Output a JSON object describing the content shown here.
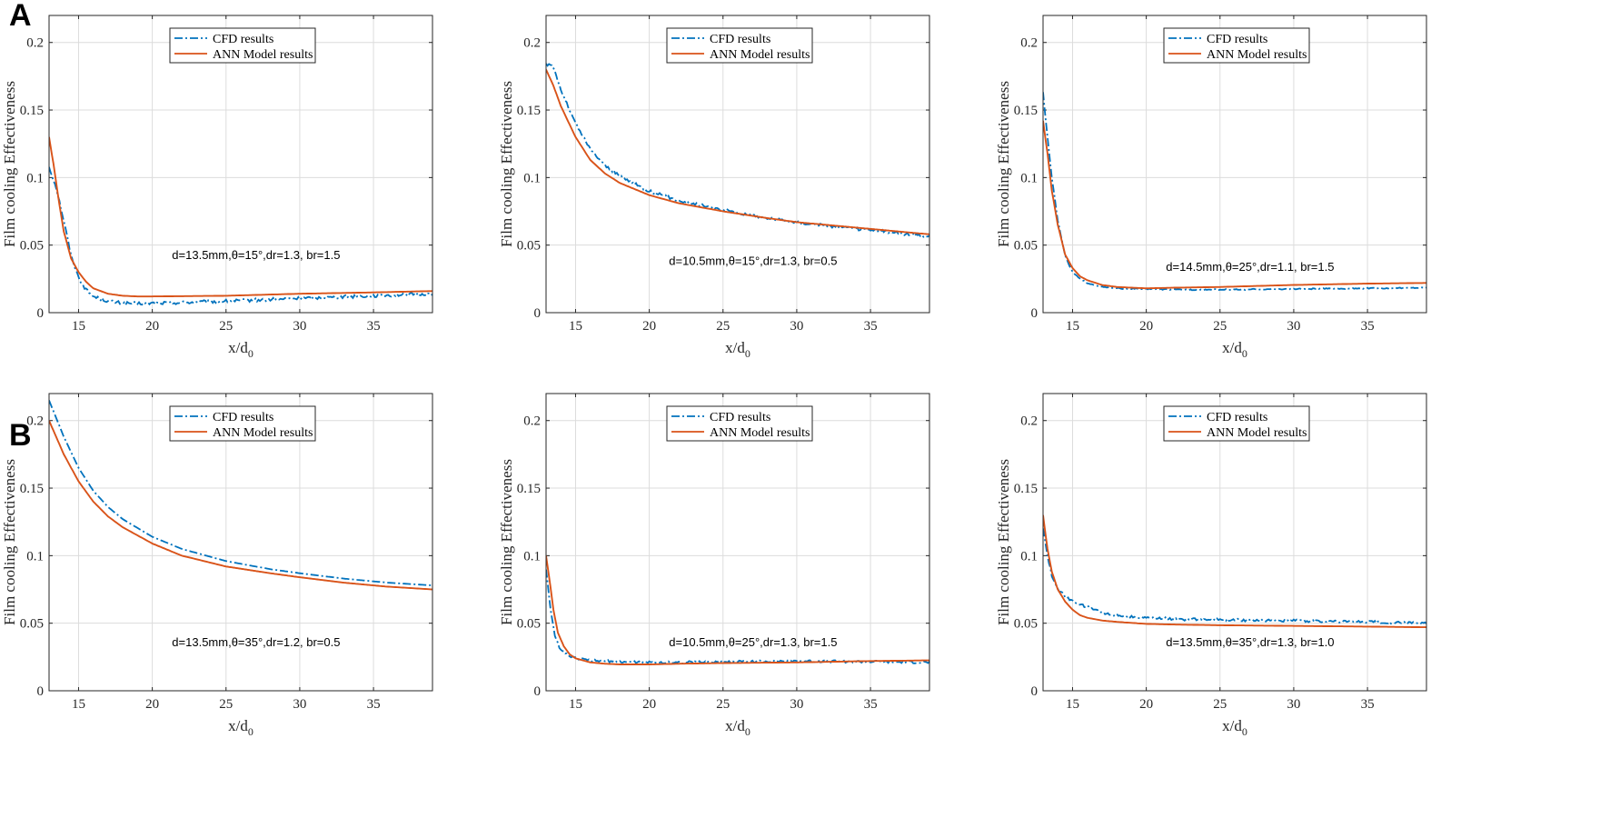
{
  "figure": {
    "row_labels": [
      "A",
      "B"
    ]
  },
  "colors": {
    "cfd": "#0072BD",
    "ann": "#D95319"
  },
  "chart_data": [
    {
      "type": "line",
      "row": "A",
      "xlabel": "x/d",
      "xlabel_sub": "0",
      "ylabel": "Film cooling Effectiveness",
      "xlim": [
        13,
        39
      ],
      "ylim": [
        0,
        0.22
      ],
      "xticks": [
        15,
        20,
        25,
        30,
        35
      ],
      "yticks": [
        0,
        0.05,
        0.1,
        0.15,
        0.2
      ],
      "ytick_labels": [
        "0",
        "0.05",
        "0.1",
        "0.15",
        "0.2"
      ],
      "grid": true,
      "legend_position": "top-center",
      "annotation": "d=13.5mm,θ=15°,dr=1.3, br=1.5",
      "series": [
        {
          "name": "CFD results",
          "style": "dashdot",
          "noise": 0.0012,
          "x": [
            13,
            13.5,
            14,
            14.5,
            15,
            15.5,
            16,
            17,
            18,
            19,
            20,
            22,
            25,
            30,
            35,
            39
          ],
          "y": [
            0.108,
            0.092,
            0.068,
            0.042,
            0.026,
            0.017,
            0.012,
            0.0085,
            0.007,
            0.0068,
            0.007,
            0.0075,
            0.0085,
            0.0105,
            0.0125,
            0.014
          ]
        },
        {
          "name": "ANN Model results",
          "style": "solid",
          "noise": 0,
          "x": [
            13,
            13.3,
            13.7,
            14,
            14.5,
            15,
            15.5,
            16,
            17,
            18,
            19,
            20,
            25,
            30,
            35,
            39
          ],
          "y": [
            0.13,
            0.11,
            0.08,
            0.06,
            0.04,
            0.03,
            0.023,
            0.018,
            0.014,
            0.0125,
            0.012,
            0.012,
            0.0125,
            0.014,
            0.015,
            0.016
          ]
        }
      ]
    },
    {
      "type": "line",
      "row": "A",
      "xlabel": "x/d",
      "xlabel_sub": "0",
      "ylabel": "Film cooling Effectiveness",
      "xlim": [
        13,
        39
      ],
      "ylim": [
        0,
        0.22
      ],
      "xticks": [
        15,
        20,
        25,
        30,
        35
      ],
      "yticks": [
        0,
        0.05,
        0.1,
        0.15,
        0.2
      ],
      "ytick_labels": [
        "0",
        "0.05",
        "0.1",
        "0.15",
        "0.2"
      ],
      "grid": true,
      "legend_position": "top-center",
      "annotation": "d=10.5mm,θ=15°,dr=1.3, br=0.5",
      "series": [
        {
          "name": "CFD results",
          "style": "dashdot",
          "noise": 0.0011,
          "x": [
            13,
            13.5,
            14,
            15,
            16,
            17,
            18,
            20,
            22,
            25,
            28,
            30,
            33,
            36,
            39
          ],
          "y": [
            0.184,
            0.182,
            0.165,
            0.14,
            0.121,
            0.109,
            0.101,
            0.09,
            0.083,
            0.076,
            0.07,
            0.067,
            0.063,
            0.06,
            0.056
          ]
        },
        {
          "name": "ANN Model results",
          "style": "solid",
          "noise": 0,
          "x": [
            13,
            13.5,
            14,
            15,
            16,
            17,
            18,
            20,
            22,
            25,
            28,
            30,
            33,
            36,
            39
          ],
          "y": [
            0.18,
            0.168,
            0.153,
            0.13,
            0.113,
            0.103,
            0.096,
            0.087,
            0.081,
            0.075,
            0.07,
            0.067,
            0.064,
            0.061,
            0.058
          ]
        }
      ]
    },
    {
      "type": "line",
      "row": "A",
      "xlabel": "x/d",
      "xlabel_sub": "0",
      "ylabel": "Film cooling Effectiveness",
      "xlim": [
        13,
        39
      ],
      "ylim": [
        0,
        0.22
      ],
      "xticks": [
        15,
        20,
        25,
        30,
        35
      ],
      "yticks": [
        0,
        0.05,
        0.1,
        0.15,
        0.2
      ],
      "ytick_labels": [
        "0",
        "0.05",
        "0.1",
        "0.15",
        "0.2"
      ],
      "grid": true,
      "legend_position": "top-center",
      "annotation": "d=14.5mm,θ=25°,dr=1.1, br=1.5",
      "series": [
        {
          "name": "CFD results",
          "style": "dashdot",
          "noise": 0.0004,
          "x": [
            13,
            13.3,
            13.6,
            14,
            14.5,
            15,
            15.5,
            16,
            17,
            18,
            20,
            22,
            25,
            30,
            35,
            39
          ],
          "y": [
            0.163,
            0.13,
            0.1,
            0.068,
            0.042,
            0.03,
            0.025,
            0.022,
            0.019,
            0.018,
            0.0175,
            0.017,
            0.017,
            0.0175,
            0.018,
            0.0185
          ]
        },
        {
          "name": "ANN Model results",
          "style": "solid",
          "noise": 0,
          "x": [
            13,
            13.3,
            13.6,
            14,
            14.5,
            15,
            15.5,
            16,
            17,
            18,
            20,
            22,
            25,
            30,
            35,
            39
          ],
          "y": [
            0.142,
            0.118,
            0.09,
            0.065,
            0.043,
            0.033,
            0.027,
            0.024,
            0.0205,
            0.019,
            0.018,
            0.0185,
            0.019,
            0.0205,
            0.0215,
            0.022
          ]
        }
      ]
    },
    {
      "type": "line",
      "row": "B",
      "xlabel": "x/d",
      "xlabel_sub": "0",
      "ylabel": "Film cooling Effectiveness",
      "xlim": [
        13,
        39
      ],
      "ylim": [
        0,
        0.22
      ],
      "xticks": [
        15,
        20,
        25,
        30,
        35
      ],
      "yticks": [
        0,
        0.05,
        0.1,
        0.15,
        0.2
      ],
      "ytick_labels": [
        "0",
        "0.05",
        "0.1",
        "0.15",
        "0.2"
      ],
      "grid": true,
      "legend_position": "top-center",
      "annotation": "d=13.5mm,θ=35°,dr=1.2, br=0.5",
      "series": [
        {
          "name": "CFD results",
          "style": "dashdot",
          "noise": 0,
          "x": [
            13,
            14,
            15,
            16,
            17,
            18,
            20,
            22,
            25,
            28,
            30,
            33,
            36,
            39
          ],
          "y": [
            0.215,
            0.188,
            0.165,
            0.148,
            0.136,
            0.127,
            0.114,
            0.105,
            0.096,
            0.09,
            0.087,
            0.083,
            0.08,
            0.078
          ]
        },
        {
          "name": "ANN Model results",
          "style": "solid",
          "noise": 0,
          "x": [
            13,
            14,
            15,
            16,
            17,
            18,
            20,
            22,
            25,
            28,
            30,
            33,
            36,
            39
          ],
          "y": [
            0.2,
            0.175,
            0.155,
            0.14,
            0.129,
            0.121,
            0.109,
            0.1,
            0.092,
            0.087,
            0.084,
            0.08,
            0.077,
            0.075
          ]
        }
      ]
    },
    {
      "type": "line",
      "row": "B",
      "xlabel": "x/d",
      "xlabel_sub": "0",
      "ylabel": "Film cooling Effectiveness",
      "xlim": [
        13,
        39
      ],
      "ylim": [
        0,
        0.22
      ],
      "xticks": [
        15,
        20,
        25,
        30,
        35
      ],
      "yticks": [
        0,
        0.05,
        0.1,
        0.15,
        0.2
      ],
      "ytick_labels": [
        "0",
        "0.05",
        "0.1",
        "0.15",
        "0.2"
      ],
      "grid": true,
      "legend_position": "top-center",
      "annotation": "d=10.5mm,θ=25°,dr=1.3, br=1.5",
      "series": [
        {
          "name": "CFD results",
          "style": "dashdot",
          "noise": 0.0009,
          "x": [
            13,
            13.3,
            13.6,
            14,
            14.5,
            15,
            16,
            17,
            18,
            20,
            22,
            25,
            30,
            35,
            39
          ],
          "y": [
            0.09,
            0.06,
            0.04,
            0.03,
            0.026,
            0.024,
            0.0225,
            0.022,
            0.0215,
            0.021,
            0.021,
            0.0215,
            0.022,
            0.0215,
            0.021
          ]
        },
        {
          "name": "ANN Model results",
          "style": "solid",
          "noise": 0,
          "x": [
            13,
            13.2,
            13.5,
            13.8,
            14.2,
            14.6,
            15,
            16,
            17,
            18,
            20,
            22,
            25,
            30,
            35,
            39
          ],
          "y": [
            0.1,
            0.085,
            0.06,
            0.043,
            0.033,
            0.027,
            0.024,
            0.021,
            0.02,
            0.0195,
            0.0195,
            0.02,
            0.0205,
            0.021,
            0.022,
            0.0225
          ]
        }
      ]
    },
    {
      "type": "line",
      "row": "B",
      "xlabel": "x/d",
      "xlabel_sub": "0",
      "ylabel": "Film cooling Effectiveness",
      "xlim": [
        13,
        39
      ],
      "ylim": [
        0,
        0.22
      ],
      "xticks": [
        15,
        20,
        25,
        30,
        35
      ],
      "yticks": [
        0,
        0.05,
        0.1,
        0.15,
        0.2
      ],
      "ytick_labels": [
        "0",
        "0.05",
        "0.1",
        "0.15",
        "0.2"
      ],
      "grid": true,
      "legend_position": "top-center",
      "annotation": "d=13.5mm,θ=35°,dr=1.3, br=1.0",
      "series": [
        {
          "name": "CFD results",
          "style": "dashdot",
          "noise": 0.001,
          "x": [
            13,
            13.3,
            13.6,
            14,
            14.5,
            15,
            15.5,
            16,
            17,
            18,
            20,
            22,
            25,
            30,
            35,
            39
          ],
          "y": [
            0.12,
            0.1,
            0.085,
            0.075,
            0.07,
            0.066,
            0.064,
            0.062,
            0.058,
            0.056,
            0.054,
            0.053,
            0.0525,
            0.052,
            0.051,
            0.05
          ]
        },
        {
          "name": "ANN Model results",
          "style": "solid",
          "noise": 0,
          "x": [
            13,
            13.3,
            13.6,
            14,
            14.5,
            15,
            15.5,
            16,
            17,
            18,
            20,
            22,
            25,
            30,
            35,
            39
          ],
          "y": [
            0.13,
            0.105,
            0.088,
            0.075,
            0.066,
            0.06,
            0.056,
            0.054,
            0.052,
            0.051,
            0.0495,
            0.049,
            0.0485,
            0.048,
            0.0475,
            0.047
          ]
        }
      ]
    }
  ]
}
